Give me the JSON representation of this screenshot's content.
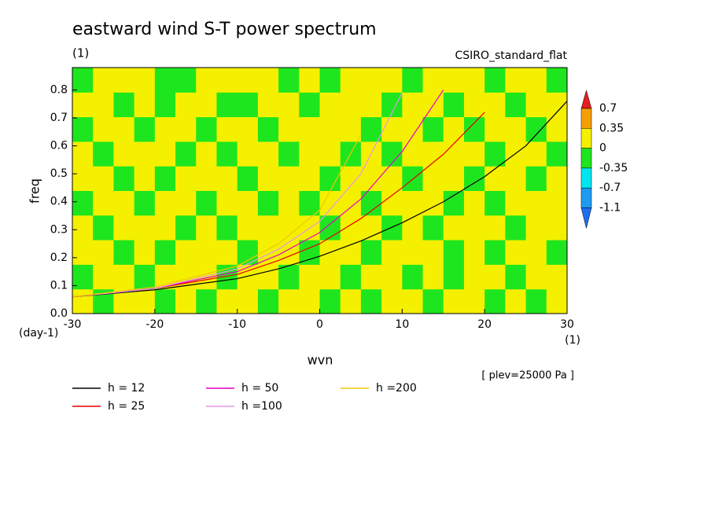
{
  "chart_data": {
    "type": "contour_line",
    "title": "eastward wind S-T power spectrum",
    "subtitle": "(1)",
    "model_label": "CSIRO_standard_flat",
    "x_label": "wvn",
    "y_label": "freq",
    "y_unit": "(day-1)",
    "x_unit": "(1)",
    "annotation": "[ plev=25000 Pa ]",
    "xlim": [
      -30,
      30
    ],
    "ylim": [
      0,
      0.88
    ],
    "xticks": [
      -30,
      -20,
      -10,
      0,
      10,
      20,
      30
    ],
    "yticks": [
      {
        "value": 0,
        "label": "0.0"
      },
      0.1,
      0.2,
      0.3,
      0.4,
      0.5,
      0.6,
      0.7,
      0.8
    ],
    "colorbar": {
      "levels": [
        -1.1,
        -0.7,
        -0.35,
        0,
        0.35,
        0.7
      ],
      "colors": [
        "#1e6ef0",
        "#1e9bf0",
        "#00e6f0",
        "#1ee61e",
        "#f5f000",
        "#f5a000",
        "#e61e1e"
      ]
    },
    "field": [
      [
        0.1,
        -0.1,
        0.1,
        0.1,
        -0.1,
        0.1,
        -0.1,
        0.1,
        0.1,
        -0.1,
        0.1,
        0.1,
        -0.1,
        0.1,
        -0.1,
        0.1,
        0.1,
        -0.1,
        0.1,
        0.1,
        -0.1,
        0.1,
        -0.1,
        0.1
      ],
      [
        -0.1,
        0.1,
        0.1,
        -0.1,
        0.1,
        0.1,
        0.1,
        -0.1,
        0.1,
        0.1,
        -0.1,
        0.1,
        0.1,
        -0.1,
        0.1,
        0.1,
        -0.1,
        0.1,
        -0.1,
        0.1,
        0.1,
        -0.1,
        0.1,
        0.1
      ],
      [
        0.1,
        0.1,
        -0.1,
        0.1,
        -0.1,
        0.1,
        0.1,
        0.1,
        -0.1,
        0.1,
        0.1,
        -0.1,
        0.1,
        0.1,
        -0.1,
        0.1,
        0.1,
        0.1,
        -0.1,
        0.1,
        -0.1,
        0.1,
        0.1,
        -0.1
      ],
      [
        0.1,
        -0.1,
        0.1,
        0.1,
        0.1,
        -0.1,
        0.1,
        -0.1,
        0.1,
        0.1,
        0.1,
        0.1,
        -0.1,
        0.1,
        0.1,
        -0.1,
        0.1,
        -0.1,
        0.1,
        0.1,
        0.1,
        -0.1,
        0.1,
        0.1
      ],
      [
        -0.1,
        0.1,
        0.1,
        -0.1,
        0.1,
        0.1,
        -0.1,
        0.1,
        0.1,
        -0.1,
        0.1,
        -0.1,
        0.1,
        0.1,
        -0.1,
        0.1,
        0.1,
        0.1,
        -0.1,
        0.1,
        -0.1,
        0.1,
        0.1,
        0.1
      ],
      [
        0.1,
        0.1,
        -0.1,
        0.1,
        -0.1,
        0.1,
        0.1,
        0.1,
        -0.1,
        0.1,
        0.1,
        0.1,
        -0.1,
        0.1,
        0.1,
        0.1,
        -0.1,
        0.1,
        0.1,
        -0.1,
        0.1,
        0.1,
        -0.1,
        0.1
      ],
      [
        0.1,
        -0.1,
        0.1,
        0.1,
        0.1,
        -0.1,
        0.1,
        -0.1,
        0.1,
        0.1,
        -0.1,
        0.1,
        0.1,
        -0.1,
        0.1,
        -0.1,
        0.1,
        0.1,
        0.1,
        0.1,
        -0.1,
        0.1,
        0.1,
        -0.1
      ],
      [
        -0.1,
        0.1,
        0.1,
        -0.1,
        0.1,
        0.1,
        -0.1,
        0.1,
        0.1,
        -0.1,
        0.1,
        0.1,
        0.1,
        0.1,
        -0.1,
        0.1,
        0.1,
        -0.1,
        0.1,
        -0.1,
        0.1,
        0.1,
        -0.1,
        0.1
      ],
      [
        0.1,
        0.1,
        -0.1,
        0.1,
        -0.1,
        0.1,
        0.1,
        -0.1,
        -0.1,
        0.1,
        0.1,
        -0.1,
        0.1,
        0.1,
        0.1,
        -0.1,
        0.1,
        0.1,
        -0.1,
        0.1,
        0.1,
        -0.1,
        0.1,
        0.1
      ],
      [
        -0.1,
        0.1,
        0.1,
        0.1,
        -0.1,
        -0.1,
        0.1,
        0.1,
        0.1,
        0.1,
        -0.1,
        0.1,
        -0.1,
        0.1,
        0.1,
        0.1,
        -0.1,
        0.1,
        0.1,
        0.1,
        -0.1,
        0.1,
        0.1,
        -0.1
      ]
    ],
    "x": [
      -30,
      -20,
      -10,
      -5,
      0,
      5,
      10,
      15,
      20,
      25,
      30
    ],
    "series": [
      {
        "name": "h = 12",
        "color": "#000000",
        "values": [
          0.06,
          0.085,
          0.125,
          0.16,
          0.205,
          0.26,
          0.325,
          0.4,
          0.49,
          0.6,
          0.76
        ]
      },
      {
        "name": "h = 25",
        "color": "#e60000",
        "values": [
          0.06,
          0.09,
          0.14,
          0.19,
          0.25,
          0.34,
          0.45,
          0.57,
          0.72,
          null,
          null
        ]
      },
      {
        "name": "h = 50",
        "color": "#e600c8",
        "values": [
          0.06,
          0.09,
          0.15,
          0.21,
          0.29,
          0.41,
          0.58,
          0.8,
          null,
          null,
          null
        ]
      },
      {
        "name": "h =100",
        "color": "#e696e6",
        "values": [
          0.06,
          0.09,
          0.16,
          0.23,
          0.33,
          0.5,
          0.79,
          null,
          null,
          null,
          null
        ]
      },
      {
        "name": "h =200",
        "color": "#f0c800",
        "values": [
          0.06,
          0.095,
          0.17,
          0.25,
          0.37,
          0.64,
          null,
          null,
          null,
          null,
          null
        ]
      }
    ]
  }
}
